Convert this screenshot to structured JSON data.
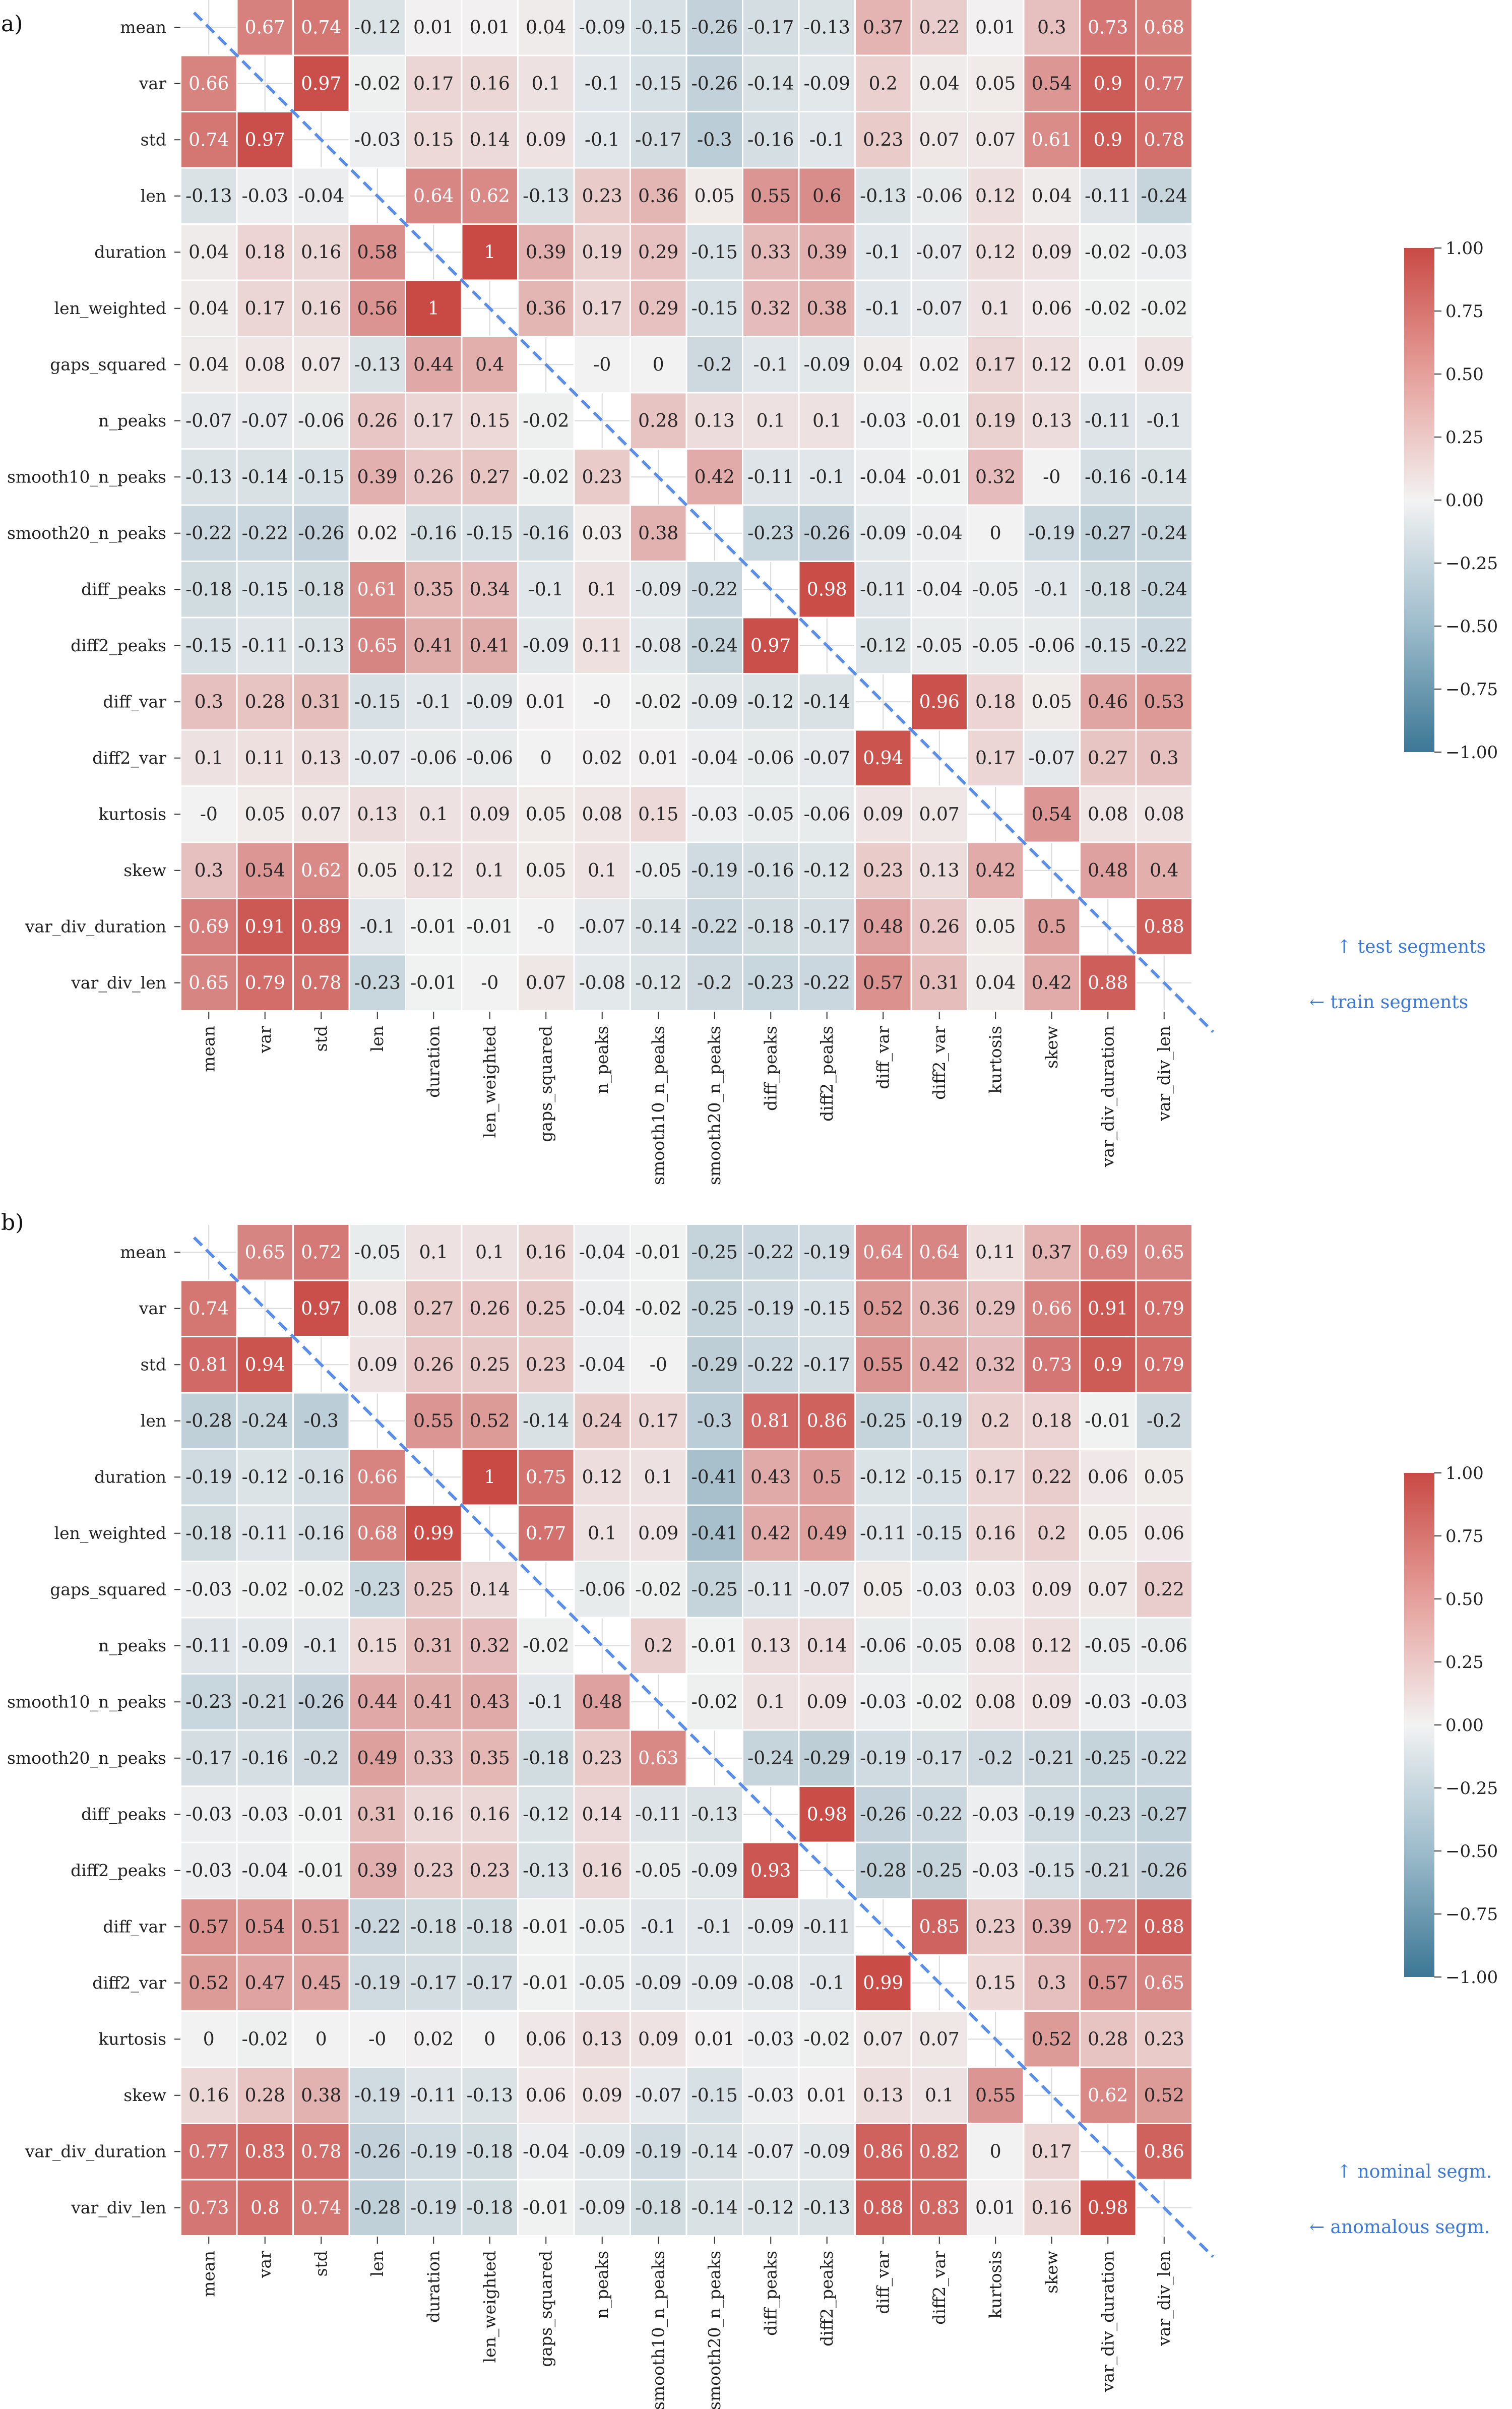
{
  "chart_data": [
    {
      "type": "heatmap",
      "panel_label": "a)",
      "labels": [
        "mean",
        "var",
        "std",
        "len",
        "duration",
        "len_weighted",
        "gaps_squared",
        "n_peaks",
        "smooth10_n_peaks",
        "smooth20_n_peaks",
        "diff_peaks",
        "diff2_peaks",
        "diff_var",
        "diff2_var",
        "kurtosis",
        "skew",
        "var_div_duration",
        "var_div_len"
      ],
      "matrix": [
        [
          null,
          0.67,
          0.74,
          -0.12,
          0.01,
          0.01,
          0.04,
          -0.09,
          -0.15,
          -0.26,
          -0.17,
          -0.13,
          0.37,
          0.22,
          0.01,
          0.3,
          0.73,
          0.68
        ],
        [
          0.66,
          null,
          0.97,
          -0.02,
          0.17,
          0.16,
          0.1,
          -0.1,
          -0.15,
          -0.26,
          -0.14,
          -0.09,
          0.2,
          0.04,
          0.05,
          0.54,
          0.9,
          0.77
        ],
        [
          0.74,
          0.97,
          null,
          -0.03,
          0.15,
          0.14,
          0.09,
          -0.1,
          -0.17,
          -0.3,
          -0.16,
          -0.1,
          0.23,
          0.07,
          0.07,
          0.61,
          0.9,
          0.78
        ],
        [
          -0.13,
          -0.03,
          -0.04,
          null,
          0.64,
          0.62,
          -0.13,
          0.23,
          0.36,
          0.05,
          0.55,
          0.6,
          -0.13,
          -0.06,
          0.12,
          0.04,
          -0.11,
          -0.24
        ],
        [
          0.04,
          0.18,
          0.16,
          0.58,
          null,
          1,
          0.39,
          0.19,
          0.29,
          -0.15,
          0.33,
          0.39,
          -0.1,
          -0.07,
          0.12,
          0.09,
          -0.02,
          -0.03
        ],
        [
          0.04,
          0.17,
          0.16,
          0.56,
          1,
          null,
          0.36,
          0.17,
          0.29,
          -0.15,
          0.32,
          0.38,
          -0.1,
          -0.07,
          0.1,
          0.06,
          -0.02,
          -0.02
        ],
        [
          0.04,
          0.08,
          0.07,
          -0.13,
          0.44,
          0.4,
          null,
          0,
          0,
          -0.2,
          -0.1,
          -0.09,
          0.04,
          0.02,
          0.17,
          0.12,
          0.01,
          0.09
        ],
        [
          -0.07,
          -0.07,
          -0.06,
          0.26,
          0.17,
          0.15,
          -0.02,
          null,
          0.28,
          0.13,
          0.1,
          0.1,
          -0.03,
          -0.01,
          0.19,
          0.13,
          -0.11,
          -0.1
        ],
        [
          -0.13,
          -0.14,
          -0.15,
          0.39,
          0.26,
          0.27,
          -0.02,
          0.23,
          null,
          0.42,
          -0.11,
          -0.1,
          -0.04,
          -0.01,
          0.32,
          0,
          -0.16,
          -0.14
        ],
        [
          -0.22,
          -0.22,
          -0.26,
          0.02,
          -0.16,
          -0.15,
          -0.16,
          0.03,
          0.38,
          null,
          -0.23,
          -0.26,
          -0.09,
          -0.04,
          0,
          -0.19,
          -0.27,
          -0.24
        ],
        [
          -0.18,
          -0.15,
          -0.18,
          0.61,
          0.35,
          0.34,
          -0.1,
          0.1,
          -0.09,
          -0.22,
          null,
          0.98,
          -0.11,
          -0.04,
          -0.05,
          -0.1,
          -0.18,
          -0.24
        ],
        [
          -0.15,
          -0.11,
          -0.13,
          0.65,
          0.41,
          0.41,
          -0.09,
          0.11,
          -0.08,
          -0.24,
          0.97,
          null,
          -0.12,
          -0.05,
          -0.05,
          -0.06,
          -0.15,
          -0.22
        ],
        [
          0.3,
          0.28,
          0.31,
          -0.15,
          -0.1,
          -0.09,
          0.01,
          0,
          -0.02,
          -0.09,
          -0.12,
          -0.14,
          null,
          0.96,
          0.18,
          0.05,
          0.46,
          0.53
        ],
        [
          0.1,
          0.11,
          0.13,
          -0.07,
          -0.06,
          -0.06,
          0,
          0.02,
          0.01,
          -0.04,
          -0.06,
          -0.07,
          0.94,
          null,
          0.17,
          -0.07,
          0.27,
          0.3
        ],
        [
          0,
          0.05,
          0.07,
          0.13,
          0.1,
          0.09,
          0.05,
          0.08,
          0.15,
          -0.03,
          -0.05,
          -0.06,
          0.09,
          0.07,
          null,
          0.54,
          0.08,
          0.08
        ],
        [
          0.3,
          0.54,
          0.62,
          0.05,
          0.12,
          0.1,
          0.05,
          0.1,
          -0.05,
          -0.19,
          -0.16,
          -0.12,
          0.23,
          0.13,
          0.42,
          null,
          0.48,
          0.4
        ],
        [
          0.69,
          0.91,
          0.89,
          -0.1,
          -0.01,
          -0.01,
          0,
          -0.07,
          -0.14,
          -0.22,
          -0.18,
          -0.17,
          0.48,
          0.26,
          0.05,
          0.5,
          null,
          0.88
        ],
        [
          0.65,
          0.79,
          0.78,
          -0.23,
          -0.01,
          0,
          0.07,
          -0.08,
          -0.12,
          -0.2,
          -0.23,
          -0.22,
          0.57,
          0.31,
          0.04,
          0.42,
          0.88,
          null
        ]
      ],
      "vmin": -1.0,
      "vmax": 1.0,
      "colorbar_ticks": [
        "1.00",
        "0.75",
        "0.50",
        "0.25",
        "0.00",
        "−0.25",
        "−0.50",
        "−0.75",
        "−1.00"
      ],
      "upper_triangle_label": "↑ test segments",
      "lower_triangle_label": "← train segments"
    },
    {
      "type": "heatmap",
      "panel_label": "b)",
      "labels": [
        "mean",
        "var",
        "std",
        "len",
        "duration",
        "len_weighted",
        "gaps_squared",
        "n_peaks",
        "smooth10_n_peaks",
        "smooth20_n_peaks",
        "diff_peaks",
        "diff2_peaks",
        "diff_var",
        "diff2_var",
        "kurtosis",
        "skew",
        "var_div_duration",
        "var_div_len"
      ],
      "matrix": [
        [
          null,
          0.65,
          0.72,
          -0.05,
          0.1,
          0.1,
          0.16,
          -0.04,
          -0.01,
          -0.25,
          -0.22,
          -0.19,
          0.64,
          0.64,
          0.11,
          0.37,
          0.69,
          0.65
        ],
        [
          0.74,
          null,
          0.97,
          0.08,
          0.27,
          0.26,
          0.25,
          -0.04,
          -0.02,
          -0.25,
          -0.19,
          -0.15,
          0.52,
          0.36,
          0.29,
          0.66,
          0.91,
          0.79
        ],
        [
          0.81,
          0.94,
          null,
          0.09,
          0.26,
          0.25,
          0.23,
          -0.04,
          0,
          -0.29,
          -0.22,
          -0.17,
          0.55,
          0.42,
          0.32,
          0.73,
          0.9,
          0.79
        ],
        [
          -0.28,
          -0.24,
          -0.3,
          null,
          0.55,
          0.52,
          -0.14,
          0.24,
          0.17,
          -0.3,
          0.81,
          0.86,
          -0.25,
          -0.19,
          0.2,
          0.18,
          -0.01,
          -0.2
        ],
        [
          -0.19,
          -0.12,
          -0.16,
          0.66,
          null,
          1,
          0.75,
          0.12,
          0.1,
          -0.41,
          0.43,
          0.5,
          -0.12,
          -0.15,
          0.17,
          0.22,
          0.06,
          0.05
        ],
        [
          -0.18,
          -0.11,
          -0.16,
          0.68,
          0.99,
          null,
          0.77,
          0.1,
          0.09,
          -0.41,
          0.42,
          0.49,
          -0.11,
          -0.15,
          0.16,
          0.2,
          0.05,
          0.06
        ],
        [
          -0.03,
          -0.02,
          -0.02,
          -0.23,
          0.25,
          0.14,
          null,
          -0.06,
          -0.02,
          -0.25,
          -0.11,
          -0.07,
          0.05,
          -0.03,
          0.03,
          0.09,
          0.07,
          0.22
        ],
        [
          -0.11,
          -0.09,
          -0.1,
          0.15,
          0.31,
          0.32,
          -0.02,
          null,
          0.2,
          -0.01,
          0.13,
          0.14,
          -0.06,
          -0.05,
          0.08,
          0.12,
          -0.05,
          -0.06
        ],
        [
          -0.23,
          -0.21,
          -0.26,
          0.44,
          0.41,
          0.43,
          -0.1,
          0.48,
          null,
          -0.02,
          0.1,
          0.09,
          -0.03,
          -0.02,
          0.08,
          0.09,
          -0.03,
          -0.03
        ],
        [
          -0.17,
          -0.16,
          -0.2,
          0.49,
          0.33,
          0.35,
          -0.18,
          0.23,
          0.63,
          null,
          -0.24,
          -0.29,
          -0.19,
          -0.17,
          -0.2,
          -0.21,
          -0.25,
          -0.22
        ],
        [
          -0.03,
          -0.03,
          -0.01,
          0.31,
          0.16,
          0.16,
          -0.12,
          0.14,
          -0.11,
          -0.13,
          null,
          0.98,
          -0.26,
          -0.22,
          -0.03,
          -0.19,
          -0.23,
          -0.27
        ],
        [
          -0.03,
          -0.04,
          -0.01,
          0.39,
          0.23,
          0.23,
          -0.13,
          0.16,
          -0.05,
          -0.09,
          0.93,
          null,
          -0.28,
          -0.25,
          -0.03,
          -0.15,
          -0.21,
          -0.26
        ],
        [
          0.57,
          0.54,
          0.51,
          -0.22,
          -0.18,
          -0.18,
          -0.01,
          -0.05,
          -0.1,
          -0.1,
          -0.09,
          -0.11,
          null,
          0.85,
          0.23,
          0.39,
          0.72,
          0.88
        ],
        [
          0.52,
          0.47,
          0.45,
          -0.19,
          -0.17,
          -0.17,
          -0.01,
          -0.05,
          -0.09,
          -0.09,
          -0.08,
          -0.1,
          0.99,
          null,
          0.15,
          0.3,
          0.57,
          0.65
        ],
        [
          0,
          -0.02,
          0,
          0,
          0.02,
          0,
          0.06,
          0.13,
          0.09,
          0.01,
          -0.03,
          -0.02,
          0.07,
          0.07,
          null,
          0.52,
          0.28,
          0.23
        ],
        [
          0.16,
          0.28,
          0.38,
          -0.19,
          -0.11,
          -0.13,
          0.06,
          0.09,
          -0.07,
          -0.15,
          -0.03,
          0.01,
          0.13,
          0.1,
          0.55,
          null,
          0.62,
          0.52
        ],
        [
          0.77,
          0.83,
          0.78,
          -0.26,
          -0.19,
          -0.18,
          -0.04,
          -0.09,
          -0.19,
          -0.14,
          -0.07,
          -0.09,
          0.86,
          0.82,
          0,
          0.17,
          null,
          0.86
        ],
        [
          0.73,
          0.8,
          0.74,
          -0.28,
          -0.19,
          -0.18,
          -0.01,
          -0.09,
          -0.18,
          -0.14,
          -0.12,
          -0.13,
          0.88,
          0.83,
          0.01,
          0.16,
          0.98,
          null
        ]
      ],
      "vmin": -1.0,
      "vmax": 1.0,
      "colorbar_ticks": [
        "1.00",
        "0.75",
        "0.50",
        "0.25",
        "0.00",
        "−0.25",
        "−0.50",
        "−0.75",
        "−1.00"
      ],
      "upper_triangle_label": "↑ nominal segm.",
      "lower_triangle_label": "← anomalous segm."
    }
  ]
}
